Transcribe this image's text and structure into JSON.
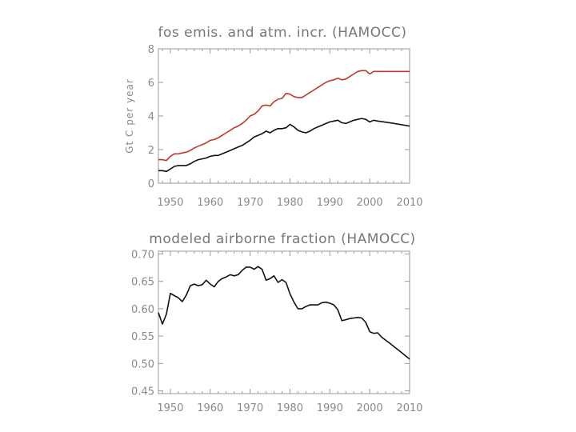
{
  "chart_data": [
    {
      "type": "line",
      "title": "fos emis. and atm. incr. (HAMOCC)",
      "xlabel": "",
      "ylabel": "Gt C per year",
      "xlim": [
        1947,
        2010
      ],
      "ylim": [
        0,
        8
      ],
      "xticks": [
        "1950",
        "1960",
        "1970",
        "1980",
        "1990",
        "2000",
        "2010"
      ],
      "xtick_values": [
        1950,
        1960,
        1970,
        1980,
        1990,
        2000,
        2010
      ],
      "yticks": [
        "0",
        "2",
        "4",
        "6",
        "8"
      ],
      "ytick_values": [
        0,
        2,
        4,
        6,
        8
      ],
      "grid": false,
      "series": [
        {
          "color": "#c0392b",
          "x": [
            1947,
            1948,
            1949,
            1950,
            1951,
            1952,
            1953,
            1954,
            1955,
            1956,
            1957,
            1958,
            1959,
            1960,
            1961,
            1962,
            1963,
            1964,
            1965,
            1966,
            1967,
            1968,
            1969,
            1970,
            1971,
            1972,
            1973,
            1974,
            1975,
            1976,
            1977,
            1978,
            1979,
            1980,
            1981,
            1982,
            1983,
            1984,
            1985,
            1986,
            1987,
            1988,
            1989,
            1990,
            1991,
            1992,
            1993,
            1994,
            1995,
            1996,
            1997,
            1998,
            1999,
            2000,
            2001,
            2002,
            2010
          ],
          "values": [
            1.4,
            1.4,
            1.35,
            1.6,
            1.75,
            1.75,
            1.8,
            1.85,
            1.95,
            2.1,
            2.2,
            2.3,
            2.4,
            2.55,
            2.6,
            2.7,
            2.85,
            3.0,
            3.15,
            3.3,
            3.4,
            3.55,
            3.75,
            4.0,
            4.1,
            4.3,
            4.6,
            4.65,
            4.6,
            4.85,
            5.0,
            5.05,
            5.35,
            5.3,
            5.15,
            5.1,
            5.1,
            5.25,
            5.4,
            5.55,
            5.7,
            5.85,
            6.0,
            6.1,
            6.15,
            6.25,
            6.15,
            6.2,
            6.35,
            6.5,
            6.65,
            6.7,
            6.7,
            6.5,
            6.65,
            6.65,
            6.65
          ]
        },
        {
          "color": "#111111",
          "x": [
            1947,
            1948,
            1949,
            1950,
            1951,
            1952,
            1953,
            1954,
            1955,
            1956,
            1957,
            1958,
            1959,
            1960,
            1961,
            1962,
            1963,
            1964,
            1965,
            1966,
            1967,
            1968,
            1969,
            1970,
            1971,
            1972,
            1973,
            1974,
            1975,
            1976,
            1977,
            1978,
            1979,
            1980,
            1981,
            1982,
            1983,
            1984,
            1985,
            1986,
            1987,
            1988,
            1989,
            1990,
            1991,
            1992,
            1993,
            1994,
            1995,
            1996,
            1997,
            1998,
            1999,
            2000,
            2001,
            2002,
            2005,
            2010
          ],
          "values": [
            0.75,
            0.75,
            0.7,
            0.85,
            1.0,
            1.05,
            1.05,
            1.05,
            1.15,
            1.3,
            1.4,
            1.45,
            1.5,
            1.6,
            1.65,
            1.65,
            1.75,
            1.85,
            1.95,
            2.05,
            2.15,
            2.25,
            2.4,
            2.55,
            2.75,
            2.85,
            2.95,
            3.1,
            3.0,
            3.15,
            3.25,
            3.25,
            3.3,
            3.5,
            3.35,
            3.15,
            3.05,
            3.0,
            3.1,
            3.25,
            3.35,
            3.45,
            3.55,
            3.65,
            3.7,
            3.75,
            3.6,
            3.55,
            3.65,
            3.75,
            3.8,
            3.85,
            3.8,
            3.65,
            3.75,
            3.7,
            3.6,
            3.4
          ]
        }
      ]
    },
    {
      "type": "line",
      "title": "modeled airborne fraction (HAMOCC)",
      "xlabel": "",
      "ylabel": "",
      "xlim": [
        1947,
        2010
      ],
      "ylim": [
        0.445,
        0.705
      ],
      "xticks": [
        "1950",
        "1960",
        "1970",
        "1980",
        "1990",
        "2000",
        "2010"
      ],
      "xtick_values": [
        1950,
        1960,
        1970,
        1980,
        1990,
        2000,
        2010
      ],
      "yticks": [
        "0.70",
        "0.65",
        "0.60",
        "0.55",
        "0.50",
        "0.45"
      ],
      "ytick_values": [
        0.7,
        0.65,
        0.6,
        0.55,
        0.5,
        0.45
      ],
      "grid": false,
      "series": [
        {
          "color": "#111111",
          "x": [
            1947,
            1948,
            1949,
            1950,
            1951,
            1952,
            1953,
            1954,
            1955,
            1956,
            1957,
            1958,
            1959,
            1960,
            1961,
            1962,
            1963,
            1964,
            1965,
            1966,
            1967,
            1968,
            1969,
            1970,
            1971,
            1972,
            1973,
            1974,
            1975,
            1976,
            1977,
            1978,
            1979,
            1980,
            1981,
            1982,
            1983,
            1984,
            1985,
            1986,
            1987,
            1988,
            1989,
            1990,
            1991,
            1992,
            1993,
            1994,
            1995,
            1996,
            1997,
            1998,
            1999,
            2000,
            2001,
            2002,
            2003,
            2005,
            2008,
            2010
          ],
          "values": [
            0.593,
            0.572,
            0.59,
            0.628,
            0.624,
            0.62,
            0.613,
            0.625,
            0.642,
            0.645,
            0.642,
            0.644,
            0.652,
            0.645,
            0.64,
            0.65,
            0.655,
            0.658,
            0.662,
            0.66,
            0.662,
            0.67,
            0.676,
            0.676,
            0.672,
            0.677,
            0.672,
            0.652,
            0.655,
            0.66,
            0.648,
            0.653,
            0.648,
            0.627,
            0.612,
            0.6,
            0.6,
            0.604,
            0.607,
            0.607,
            0.607,
            0.611,
            0.612,
            0.61,
            0.607,
            0.598,
            0.578,
            0.58,
            0.582,
            0.583,
            0.584,
            0.583,
            0.575,
            0.558,
            0.555,
            0.556,
            0.548,
            0.537,
            0.52,
            0.508
          ]
        }
      ]
    }
  ]
}
